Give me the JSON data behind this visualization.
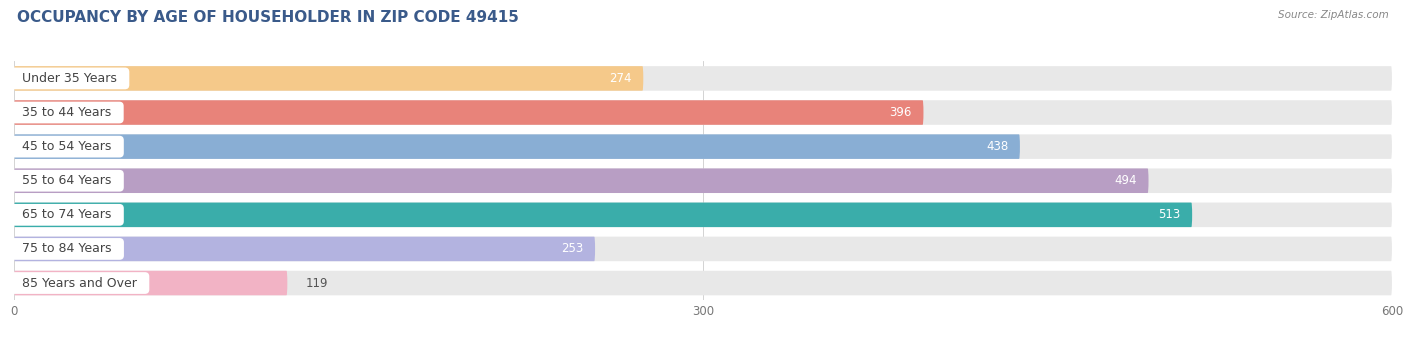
{
  "title": "OCCUPANCY BY AGE OF HOUSEHOLDER IN ZIP CODE 49415",
  "source": "Source: ZipAtlas.com",
  "categories": [
    "Under 35 Years",
    "35 to 44 Years",
    "45 to 54 Years",
    "55 to 64 Years",
    "65 to 74 Years",
    "75 to 84 Years",
    "85 Years and Over"
  ],
  "values": [
    274,
    396,
    438,
    494,
    513,
    253,
    119
  ],
  "bar_colors": [
    "#f5c98a",
    "#e8837a",
    "#89aed4",
    "#b89ec4",
    "#3aadaa",
    "#b3b3e0",
    "#f2b3c5"
  ],
  "bar_bg_color": "#e8e8e8",
  "xlim": [
    0,
    600
  ],
  "xticks": [
    0,
    300,
    600
  ],
  "background_color": "#ffffff",
  "title_fontsize": 11,
  "label_fontsize": 9,
  "value_fontsize": 8.5,
  "label_color": "#444444",
  "value_color_inside": "#ffffff",
  "value_color_outside": "#555555",
  "title_color": "#3a5a8a",
  "source_color": "#888888"
}
